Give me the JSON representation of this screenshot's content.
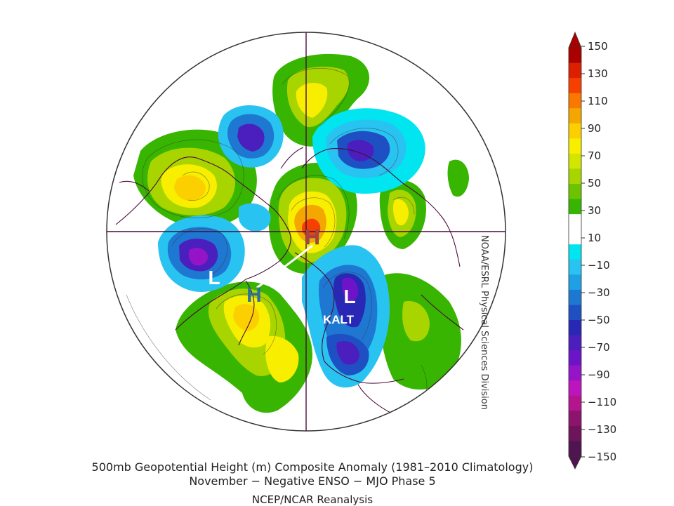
{
  "map": {
    "projection": "north-polar-stereographic",
    "markers": [
      {
        "id": "h-pole",
        "label": "H",
        "color": "#c0392b"
      },
      {
        "id": "h-greenland",
        "label": "H",
        "color": "#2e6f9e"
      },
      {
        "id": "l-canada",
        "label": "L",
        "color": "#ffffff"
      },
      {
        "id": "l-eurasia",
        "label": "L",
        "color": "#ffffff"
      },
      {
        "id": "kalt",
        "label": "KALT",
        "color": "#ffffff"
      }
    ]
  },
  "colorbar": {
    "ticks": [
      "150",
      "130",
      "110",
      "90",
      "70",
      "50",
      "30",
      "10",
      "−10",
      "−30",
      "−50",
      "−70",
      "−90",
      "−110",
      "−130",
      "−150"
    ],
    "colors": [
      "#aa0000",
      "#dd1f00",
      "#f54000",
      "#fa7800",
      "#f4a700",
      "#fcd000",
      "#f7ee00",
      "#d2e600",
      "#a8d400",
      "#6cc400",
      "#38b500",
      "#ffffff",
      "#ffffff",
      "#00e5f0",
      "#28c3f0",
      "#1ea0e5",
      "#1e78d2",
      "#1e50c3",
      "#2828b4",
      "#4b1ebe",
      "#6e14c8",
      "#9614c8",
      "#be14be",
      "#b4148c",
      "#8c146e",
      "#6e145a",
      "#501450"
    ]
  },
  "credit": "NOAA/ESRL Physical Sciences Division",
  "caption": {
    "line1": "500mb Geopotential Height (m) Composite Anomaly (1981–2010 Climatology)",
    "line2": "November − Negative ENSO − MJO Phase 5",
    "line3": "NCEP/NCAR Reanalysis"
  }
}
